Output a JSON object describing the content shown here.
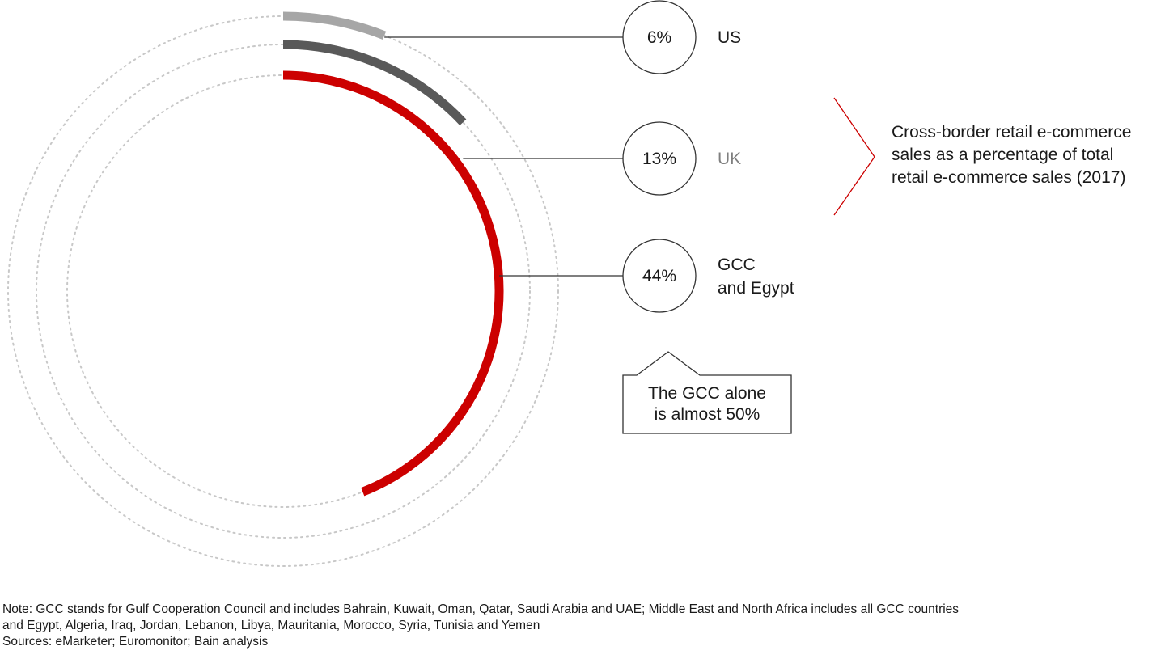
{
  "chart_data": {
    "type": "radial-bar",
    "title": "Cross-border retail e-commerce sales as a percentage of total retail e-commerce sales (2017)",
    "unit": "%",
    "scale_max": 100,
    "series": [
      {
        "name": "US",
        "value": 6,
        "label": "6%",
        "color": "#a6a6a6",
        "label_color": "#1a1a1a"
      },
      {
        "name": "UK",
        "value": 13,
        "label": "13%",
        "color": "#595959",
        "label_color": "#7f7f7f"
      },
      {
        "name": "GCC and Egypt",
        "label_lines": [
          "GCC",
          "and Egypt"
        ],
        "value": 44,
        "label": "44%",
        "color": "#cc0000",
        "label_color": "#1a1a1a"
      }
    ],
    "annotation": "The GCC alone is almost 50%",
    "annotation_lines": [
      "The GCC alone",
      "is almost 50%"
    ],
    "bracket_color": "#cc0000",
    "track_style": "dotted"
  },
  "title_lines": [
    "Cross-border retail e-commerce",
    "sales as a percentage of total",
    "retail e-commerce sales (2017)"
  ],
  "notes": {
    "note_line1": "Note: GCC stands for Gulf Cooperation Council and includes Bahrain, Kuwait, Oman, Qatar, Saudi Arabia and UAE; Middle East and North Africa includes all GCC countries",
    "note_line2": "and Egypt, Algeria, Iraq, Jordan, Lebanon, Libya, Mauritania, Morocco, Syria, Tunisia and Yemen",
    "sources": "Sources: eMarketer; Euromonitor; Bain analysis"
  }
}
